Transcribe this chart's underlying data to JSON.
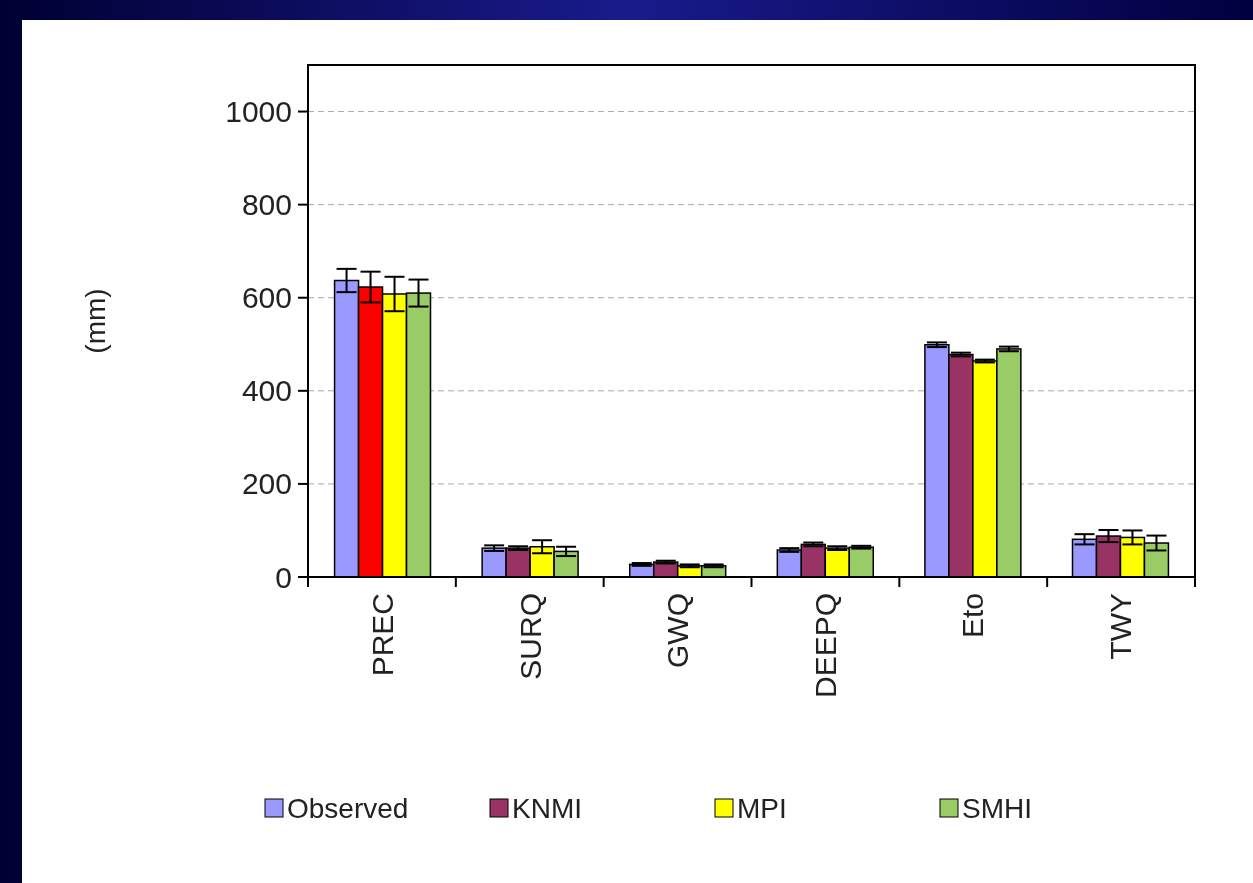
{
  "chart_data": {
    "type": "bar",
    "ylabel": "(mm)",
    "categories": [
      "PREC",
      "SURQ",
      "GWQ",
      "DEEPQ",
      "Eto",
      "TWY"
    ],
    "series": [
      {
        "name": "Observed",
        "color": "#9999ff",
        "values": [
          637,
          62,
          27,
          58,
          499,
          81
        ],
        "errors": [
          25,
          6,
          3,
          4,
          5,
          11
        ]
      },
      {
        "name": "KNMI",
        "color": "#993366",
        "colors": [
          "#ff0000",
          "#993366",
          "#993366",
          "#993366",
          "#993366",
          "#993366"
        ],
        "values": [
          623,
          62,
          32,
          70,
          478,
          88
        ],
        "errors": [
          33,
          4,
          3,
          4,
          4,
          13
        ]
      },
      {
        "name": "MPI",
        "color": "#ffff00",
        "values": [
          608,
          65,
          24,
          62,
          464,
          85
        ],
        "errors": [
          37,
          14,
          3,
          4,
          3,
          15
        ]
      },
      {
        "name": "SMHI",
        "color": "#99cc66",
        "values": [
          610,
          55,
          24,
          64,
          490,
          73
        ],
        "errors": [
          29,
          10,
          3,
          3,
          5,
          16
        ]
      }
    ],
    "ylim": [
      0,
      1100
    ],
    "yticks": [
      0,
      200,
      400,
      600,
      800,
      1000
    ],
    "grid": "y",
    "legend": "bottom"
  }
}
